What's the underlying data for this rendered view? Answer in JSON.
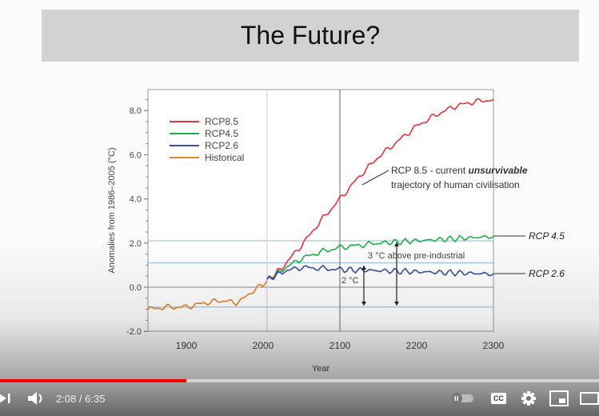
{
  "slide": {
    "title": "The Future?"
  },
  "chart_data": {
    "type": "line",
    "xlabel": "Year",
    "ylabel": "Anomalies from 1986–2005 (°C)",
    "xlim": [
      1850,
      2300
    ],
    "ylim": [
      -2,
      9
    ],
    "xticks": [
      1900,
      2000,
      2100,
      2200,
      2300
    ],
    "yticks": [
      -2,
      0,
      2,
      4,
      6,
      8
    ],
    "ytick_labels": [
      "-2.0",
      "0.0",
      "2.0",
      "4.0",
      "6.0",
      "8.0"
    ],
    "legend_position": "top-left",
    "series": [
      {
        "name": "RCP8.5",
        "color": "#e8343a",
        "x": [
          2005,
          2025,
          2050,
          2075,
          2100,
          2125,
          2150,
          2175,
          2200,
          2225,
          2250,
          2275,
          2300
        ],
        "y": [
          0.3,
          0.9,
          1.9,
          3.0,
          4.0,
          5.0,
          5.9,
          6.6,
          7.3,
          7.8,
          8.2,
          8.4,
          8.5
        ]
      },
      {
        "name": "RCP4.5",
        "color": "#1fb14a",
        "x": [
          2005,
          2025,
          2050,
          2075,
          2100,
          2125,
          2150,
          2200,
          2250,
          2300
        ],
        "y": [
          0.3,
          0.8,
          1.3,
          1.6,
          1.8,
          1.9,
          2.0,
          2.1,
          2.2,
          2.3
        ]
      },
      {
        "name": "RCP2.6",
        "color": "#3a4fa0",
        "x": [
          2005,
          2025,
          2050,
          2075,
          2100,
          2150,
          2200,
          2250,
          2300
        ],
        "y": [
          0.3,
          0.7,
          0.9,
          0.85,
          0.8,
          0.75,
          0.7,
          0.65,
          0.6
        ]
      },
      {
        "name": "Historical",
        "color": "#e8842a",
        "x": [
          1850,
          1875,
          1900,
          1925,
          1950,
          1965,
          1975,
          1990,
          2005
        ],
        "y": [
          -1.0,
          -0.9,
          -0.9,
          -0.7,
          -0.6,
          -0.7,
          -0.5,
          -0.1,
          0.3
        ]
      }
    ],
    "reference_lines": [
      2.1,
      1.1,
      -0.9
    ],
    "annotations": {
      "rcp85_note_line1": "RCP 8.5 - current",
      "rcp85_note_bold": "unsurvivable",
      "rcp85_note_line2": "trajectory of human civilisation",
      "rcp45_label": "RCP 4.5",
      "rcp26_label": "RCP 2.6",
      "three_deg": "3 °C above pre-industrial",
      "two_deg": "2 °C"
    }
  },
  "player": {
    "current_time": "2:08",
    "duration": "6:35",
    "time_display": "2:08 / 6:35",
    "progress_fraction": 0.311,
    "cc_label": "CC"
  }
}
